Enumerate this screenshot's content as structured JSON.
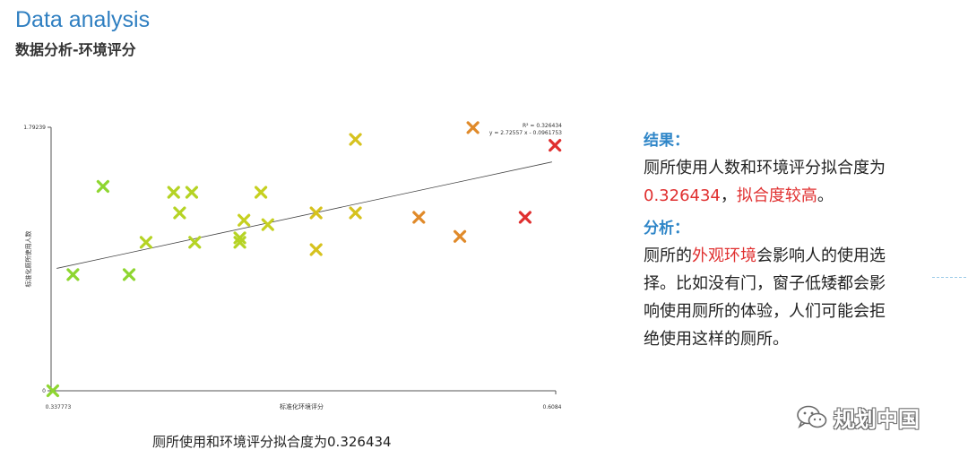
{
  "header": {
    "title": "Data analysis",
    "subtitle": "数据分析-环境评分"
  },
  "caption": "厕所使用和环境评分拟合度为0.326434",
  "panel": {
    "result_heading": "结果：",
    "result_line": "厕所使用人数和环境评分拟合度为",
    "result_value": "0.326434",
    "result_comma": "，",
    "result_note": "拟合度较高",
    "result_end": "。",
    "analysis_heading": "分析：",
    "analysis_pre": "厕所的",
    "analysis_highlight": "外观环境",
    "analysis_rest1": "会影响人的使用选",
    "analysis_rest2": "择。比如没有门，窗子低矮都会影",
    "analysis_rest3": "响使用厕所的体验，人们可能会拒",
    "analysis_rest4": "绝使用这样的厕所。"
  },
  "watermark": {
    "text": "规划中国",
    "icon": "wechat-icon"
  },
  "colors": {
    "accent": "#2f86c8",
    "highlight": "#e03030"
  },
  "chart_data": {
    "type": "scatter",
    "xlabel": "标准化环境评分",
    "ylabel": "标准化厕所使用人数",
    "x_ticks": [
      "0.337773",
      "0.6084"
    ],
    "y_ticks": [
      "1.79239",
      "0"
    ],
    "xlim": [
      0.337773,
      0.6084
    ],
    "ylim": [
      0,
      1.79239
    ],
    "grid": false,
    "annotations": [
      "R² = 0.326434",
      "y = 2.72557 x - 0.0961753"
    ],
    "trendline": {
      "slope": 2.72557,
      "intercept": -0.0961753
    },
    "points": [
      {
        "x": 0.3387,
        "y": 0.0,
        "color": "#8ed630"
      },
      {
        "x": 0.3495,
        "y": 0.79,
        "color": "#8ed630"
      },
      {
        "x": 0.3656,
        "y": 1.39,
        "color": "#8ed630"
      },
      {
        "x": 0.3796,
        "y": 0.79,
        "color": "#8ed630"
      },
      {
        "x": 0.3887,
        "y": 1.01,
        "color": "#b5d324"
      },
      {
        "x": 0.4035,
        "y": 1.35,
        "color": "#b5d324"
      },
      {
        "x": 0.4067,
        "y": 1.21,
        "color": "#b5d324"
      },
      {
        "x": 0.4132,
        "y": 1.35,
        "color": "#b5d324"
      },
      {
        "x": 0.4148,
        "y": 1.01,
        "color": "#b5d324"
      },
      {
        "x": 0.439,
        "y": 1.01,
        "color": "#b5d324"
      },
      {
        "x": 0.439,
        "y": 1.04,
        "color": "#b5d324"
      },
      {
        "x": 0.4412,
        "y": 1.16,
        "color": "#c6d020"
      },
      {
        "x": 0.4503,
        "y": 1.35,
        "color": "#c6d020"
      },
      {
        "x": 0.454,
        "y": 1.13,
        "color": "#c6d020"
      },
      {
        "x": 0.4799,
        "y": 1.21,
        "color": "#d6c21e"
      },
      {
        "x": 0.4799,
        "y": 0.96,
        "color": "#d6c21e"
      },
      {
        "x": 0.501,
        "y": 1.21,
        "color": "#d6c21e"
      },
      {
        "x": 0.501,
        "y": 1.71,
        "color": "#d6c21e"
      },
      {
        "x": 0.535,
        "y": 1.18,
        "color": "#e08a2a"
      },
      {
        "x": 0.557,
        "y": 1.05,
        "color": "#e08a2a"
      },
      {
        "x": 0.564,
        "y": 1.79,
        "color": "#e08a2a"
      },
      {
        "x": 0.592,
        "y": 1.18,
        "color": "#e03030"
      },
      {
        "x": 0.608,
        "y": 1.67,
        "color": "#e03030"
      }
    ]
  }
}
